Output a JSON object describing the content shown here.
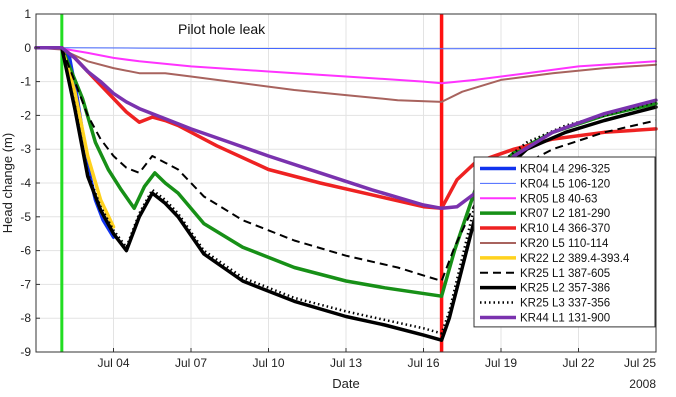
{
  "chart_data": {
    "type": "line",
    "title": "",
    "xlabel": "Date",
    "ylabel": "Head change (m)",
    "x_unit": "day of July 2008",
    "xlim": [
      1.0,
      25.0
    ],
    "ylim": [
      -9,
      1
    ],
    "x_ticks": [
      {
        "x": 4,
        "label": "Jul 04"
      },
      {
        "x": 7,
        "label": "Jul 07"
      },
      {
        "x": 10,
        "label": "Jul 10"
      },
      {
        "x": 13,
        "label": "Jul 13"
      },
      {
        "x": 16,
        "label": "Jul 16"
      },
      {
        "x": 19,
        "label": "Jul 19"
      },
      {
        "x": 22,
        "label": "Jul 22"
      },
      {
        "x": 25,
        "label": "Jul 25"
      }
    ],
    "x_extra_label": "2008",
    "y_ticks": [
      1,
      0,
      -1,
      -2,
      -3,
      -4,
      -5,
      -6,
      -7,
      -8,
      -9
    ],
    "grid": true,
    "legend_position": "right",
    "annotations": [
      {
        "text": "Pilot hole leak",
        "x": 8.9,
        "y": 0.6
      }
    ],
    "vertical_lines": [
      {
        "x": 2.0,
        "color": "#22dd22",
        "width": 3
      },
      {
        "x": 16.7,
        "color": "#ff1111",
        "width": 3.5
      }
    ],
    "series": [
      {
        "name": "KR04 L4 296-325",
        "color": "#1133ee",
        "width": 3.5,
        "dash": "",
        "x": [
          2.0,
          2.3,
          2.6,
          3.0,
          3.3,
          3.6,
          4.0
        ],
        "y": [
          0.0,
          -0.3,
          -1.5,
          -3.5,
          -4.5,
          -5.1,
          -5.6
        ]
      },
      {
        "name": "KR04 L5 106-120",
        "color": "#4466ff",
        "width": 1,
        "dash": "",
        "x": [
          1.0,
          2.0,
          5.0,
          10.0,
          16.7,
          20.0,
          25.0
        ],
        "y": [
          0.0,
          0.0,
          -0.01,
          -0.02,
          -0.03,
          -0.02,
          -0.02
        ]
      },
      {
        "name": "KR05 L8 40-63",
        "color": "#ff33ff",
        "width": 2,
        "dash": "",
        "x": [
          1.0,
          2.0,
          3.0,
          4.0,
          5.0,
          7.0,
          10.0,
          13.0,
          16.0,
          16.7,
          18.0,
          20.0,
          22.0,
          25.0
        ],
        "y": [
          0.0,
          -0.02,
          -0.15,
          -0.3,
          -0.4,
          -0.55,
          -0.7,
          -0.85,
          -1.0,
          -1.05,
          -0.95,
          -0.75,
          -0.55,
          -0.4
        ]
      },
      {
        "name": "KR07 L2 181-290",
        "color": "#179017",
        "width": 3.5,
        "dash": "",
        "x": [
          1.0,
          2.0,
          2.8,
          3.3,
          3.8,
          4.3,
          4.8,
          5.2,
          5.6,
          6.0,
          6.5,
          7.5,
          9.0,
          11.0,
          13.0,
          14.5,
          16.7,
          17.2,
          18.0,
          19.5,
          21.0,
          23.0,
          25.0
        ],
        "y": [
          0.0,
          0.0,
          -1.5,
          -2.8,
          -3.6,
          -4.2,
          -4.75,
          -4.1,
          -3.7,
          -4.0,
          -4.3,
          -5.2,
          -5.9,
          -6.5,
          -6.9,
          -7.1,
          -7.35,
          -6.0,
          -4.2,
          -3.1,
          -2.5,
          -2.0,
          -1.65
        ]
      },
      {
        "name": "KR10 L4 366-370",
        "color": "#ee2222",
        "width": 3.5,
        "dash": "",
        "x": [
          1.0,
          2.0,
          2.5,
          3.0,
          3.5,
          4.0,
          4.5,
          5.0,
          5.5,
          6.0,
          6.5,
          8.0,
          10.0,
          12.0,
          14.0,
          16.0,
          16.7,
          17.3,
          18.0,
          19.5,
          21.0,
          23.0,
          25.0
        ],
        "y": [
          0.0,
          0.0,
          -0.3,
          -0.7,
          -1.1,
          -1.5,
          -1.9,
          -2.2,
          -2.05,
          -2.15,
          -2.3,
          -2.9,
          -3.6,
          -4.0,
          -4.35,
          -4.7,
          -4.75,
          -3.9,
          -3.4,
          -3.0,
          -2.7,
          -2.5,
          -2.4
        ]
      },
      {
        "name": "KR20 L5 110-114",
        "color": "#a8635e",
        "width": 2,
        "dash": "",
        "x": [
          1.0,
          2.0,
          3.0,
          4.0,
          5.0,
          6.0,
          7.0,
          9.0,
          11.0,
          13.0,
          15.0,
          16.7,
          17.5,
          19.0,
          21.0,
          23.0,
          25.0
        ],
        "y": [
          0.0,
          -0.05,
          -0.4,
          -0.6,
          -0.75,
          -0.75,
          -0.85,
          -1.05,
          -1.25,
          -1.4,
          -1.55,
          -1.6,
          -1.3,
          -0.95,
          -0.75,
          -0.6,
          -0.5
        ]
      },
      {
        "name": "KR22 L2 389.4-393.4",
        "color": "#ffd21e",
        "width": 3.5,
        "dash": "",
        "x": [
          2.0,
          2.5,
          3.0,
          3.5,
          4.0
        ],
        "y": [
          0.0,
          -1.3,
          -3.2,
          -4.5,
          -5.3
        ]
      },
      {
        "name": "KR25 L1 387-605",
        "color": "#000000",
        "width": 2,
        "dash": "8,5",
        "x": [
          1.0,
          2.0,
          2.5,
          3.0,
          3.5,
          4.0,
          4.5,
          5.0,
          5.5,
          6.0,
          6.5,
          7.5,
          9.0,
          11.0,
          13.0,
          15.0,
          16.7,
          17.2,
          18.0,
          19.5,
          21.0,
          23.0,
          25.0
        ],
        "y": [
          0.0,
          0.0,
          -1.0,
          -2.0,
          -2.7,
          -3.2,
          -3.55,
          -3.7,
          -3.2,
          -3.4,
          -3.6,
          -4.4,
          -5.1,
          -5.7,
          -6.15,
          -6.5,
          -6.9,
          -5.9,
          -4.6,
          -3.6,
          -3.0,
          -2.5,
          -2.15
        ]
      },
      {
        "name": "KR25 L2 357-386",
        "color": "#000000",
        "width": 3.5,
        "dash": "",
        "x": [
          1.0,
          2.0,
          2.5,
          3.0,
          3.5,
          4.0,
          4.5,
          5.0,
          5.5,
          6.0,
          6.5,
          7.5,
          9.0,
          11.0,
          13.0,
          14.5,
          16.0,
          16.7,
          17.0,
          17.5,
          18.0,
          19.0,
          20.0,
          21.5,
          23.0,
          25.0
        ],
        "y": [
          0.0,
          0.0,
          -1.8,
          -3.8,
          -4.8,
          -5.5,
          -6.0,
          -5.0,
          -4.3,
          -4.6,
          -5.0,
          -6.1,
          -6.9,
          -7.5,
          -7.95,
          -8.2,
          -8.5,
          -8.65,
          -8.0,
          -6.5,
          -5.0,
          -3.7,
          -3.0,
          -2.5,
          -2.15,
          -1.75
        ]
      },
      {
        "name": "KR25 L3 337-356",
        "color": "#000000",
        "width": 2.5,
        "dash": "1.5,3",
        "x": [
          1.0,
          2.0,
          2.5,
          3.0,
          3.5,
          4.0,
          4.5,
          5.0,
          5.5,
          6.0,
          6.5,
          7.5,
          9.0,
          11.0,
          13.0,
          14.5,
          16.0,
          16.7,
          17.0,
          17.5,
          18.0,
          19.0,
          20.0,
          21.5,
          23.0,
          25.0
        ],
        "y": [
          0.0,
          0.0,
          -1.7,
          -3.7,
          -4.7,
          -5.4,
          -5.9,
          -4.9,
          -4.2,
          -4.5,
          -4.9,
          -6.0,
          -6.8,
          -7.4,
          -7.8,
          -8.05,
          -8.3,
          -8.45,
          -7.8,
          -6.2,
          -4.6,
          -3.4,
          -2.8,
          -2.3,
          -2.0,
          -1.6
        ]
      },
      {
        "name": "KR44 L1 131-900",
        "color": "#7a32ae",
        "width": 3.5,
        "dash": "",
        "x": [
          1.0,
          2.0,
          2.5,
          3.0,
          3.5,
          4.0,
          4.5,
          5.0,
          6.0,
          7.0,
          8.5,
          10.0,
          12.0,
          14.0,
          16.0,
          16.7,
          17.3,
          18.0,
          19.5,
          21.0,
          23.0,
          25.0
        ],
        "y": [
          0.0,
          0.0,
          -0.3,
          -0.7,
          -1.0,
          -1.35,
          -1.6,
          -1.8,
          -2.1,
          -2.4,
          -2.8,
          -3.2,
          -3.7,
          -4.2,
          -4.65,
          -4.75,
          -4.7,
          -4.3,
          -3.2,
          -2.5,
          -1.95,
          -1.55
        ]
      }
    ]
  }
}
